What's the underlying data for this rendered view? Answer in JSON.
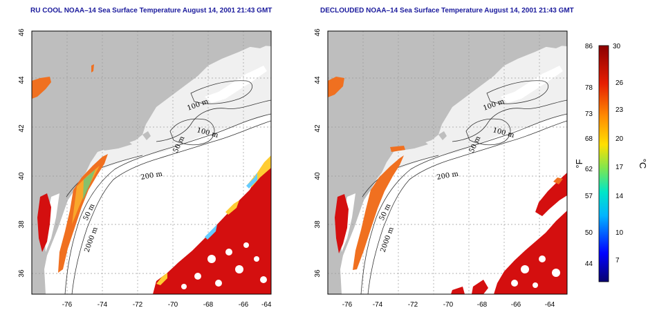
{
  "left_panel": {
    "title": "RU COOL NOAA–14 Sea Surface Temperature August 14, 2001 21:43 GMT"
  },
  "right_panel": {
    "title": "DECLOUDED NOAA–14 Sea Surface Temperature August 14, 2001 21:43 GMT"
  },
  "axes": {
    "lon_ticks": [
      "-76",
      "-74",
      "-72",
      "-70",
      "-68",
      "-66",
      "-64"
    ],
    "lat_ticks": [
      "46",
      "44",
      "42",
      "40",
      "38",
      "36"
    ]
  },
  "contour_labels": [
    "100 m",
    "100 m",
    "50 m",
    "200 m",
    "50 m",
    "2000 m"
  ],
  "colorbar": {
    "fahrenheit_label": "°F",
    "celsius_label": "°C",
    "fahrenheit_ticks": [
      "86",
      "78",
      "73",
      "68",
      "62",
      "57",
      "50",
      "44"
    ],
    "celsius_ticks": [
      "30",
      "26",
      "23",
      "20",
      "17",
      "14",
      "10",
      "7"
    ],
    "colors": [
      "#08006e",
      "#0000ff",
      "#00b4ff",
      "#00e6c8",
      "#7ee650",
      "#ffe000",
      "#ff8c00",
      "#e61e00",
      "#8b0000"
    ]
  },
  "colors": {
    "land": "#bebebe",
    "ocean": "#ffffff",
    "shelf": "#f0f0f0",
    "warm": "#d40f0f",
    "coastal": "#f07020",
    "title": "#1a1a9c"
  }
}
